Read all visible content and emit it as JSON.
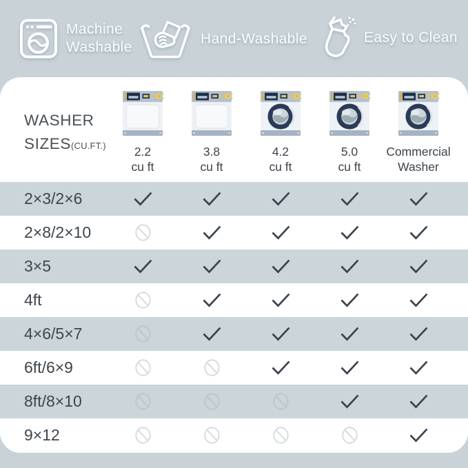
{
  "colors": {
    "background": "#c8d2d7",
    "card": "#ffffff",
    "row_band": "#ccd5da",
    "banner_text": "#fbfdfe",
    "label_text": "#3d454d",
    "check": "#3a434c",
    "no_sign_on_white": "#d3d9dc",
    "no_sign_on_band": "#bac5cb",
    "washer": {
      "panel": "#b5c1cf",
      "display": "#1d2f49",
      "display_bar": "#b9c6d2",
      "accent": "#e8c45b",
      "dial": "#edcf69",
      "dial_center": "#e0b84d",
      "body": "#eef1f5",
      "base": "#a6b3c3",
      "door_ring": "#2a3a57",
      "door_glass": "#ccd5dc",
      "door_wave": "#9cadaf",
      "door_highlight": "#dde4ea"
    }
  },
  "banner": {
    "features": [
      {
        "icon": "washing-machine-icon",
        "label": "Machine Washable"
      },
      {
        "icon": "hand-wash-icon",
        "label": "Hand-Washable"
      },
      {
        "icon": "spray-bottle-icon",
        "label": "Easy to Clean"
      }
    ]
  },
  "table": {
    "title_line1": "WASHER",
    "title_line2": "SIZES",
    "title_suffix": "(CU.FT.)",
    "columns": [
      {
        "label": "2.2\ncu ft",
        "washer": "top"
      },
      {
        "label": "3.8\ncu ft",
        "washer": "top"
      },
      {
        "label": "4.2\ncu ft",
        "washer": "front"
      },
      {
        "label": "5.0\ncu ft",
        "washer": "front"
      },
      {
        "label": "Commercial\nWasher",
        "washer": "front"
      }
    ]
  },
  "chart_data": {
    "type": "table",
    "title": "WASHER SIZES (CU.FT.)",
    "columns": [
      "2.2 cu ft",
      "3.8 cu ft",
      "4.2 cu ft",
      "5.0 cu ft",
      "Commercial Washer"
    ],
    "rows": [
      {
        "label": "2×3/2×6",
        "values": [
          "yes",
          "yes",
          "yes",
          "yes",
          "yes"
        ]
      },
      {
        "label": "2×8/2×10",
        "values": [
          "no",
          "yes",
          "yes",
          "yes",
          "yes"
        ]
      },
      {
        "label": "3×5",
        "values": [
          "yes",
          "yes",
          "yes",
          "yes",
          "yes"
        ]
      },
      {
        "label": "4ft",
        "values": [
          "no",
          "yes",
          "yes",
          "yes",
          "yes"
        ]
      },
      {
        "label": "4×6/5×7",
        "values": [
          "no",
          "yes",
          "yes",
          "yes",
          "yes"
        ]
      },
      {
        "label": "6ft/6×9",
        "values": [
          "no",
          "no",
          "yes",
          "yes",
          "yes"
        ]
      },
      {
        "label": "8ft/8×10",
        "values": [
          "no",
          "no",
          "no",
          "yes",
          "yes"
        ]
      },
      {
        "label": "9×12",
        "values": [
          "no",
          "no",
          "no",
          "no",
          "yes"
        ]
      }
    ],
    "legend": {
      "yes": "check mark — fits in washer",
      "no": "crossed circle — does not fit"
    }
  }
}
